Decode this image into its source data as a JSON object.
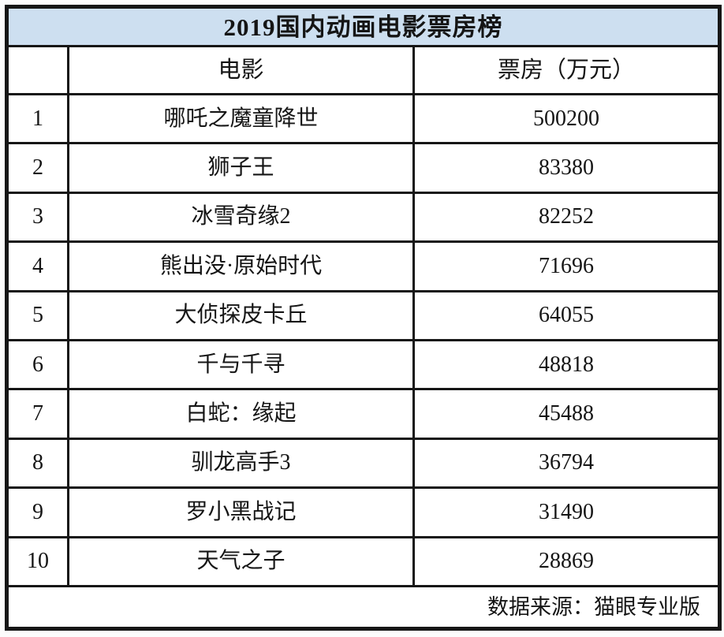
{
  "chart_data": {
    "type": "table",
    "title": "2019国内动画电影票房榜",
    "columns": {
      "rank": "",
      "movie": "电影",
      "boxoffice": "票房（万元）"
    },
    "rows": [
      {
        "rank": "1",
        "movie": "哪吒之魔童降世",
        "boxoffice": "500200"
      },
      {
        "rank": "2",
        "movie": "狮子王",
        "boxoffice": "83380"
      },
      {
        "rank": "3",
        "movie": "冰雪奇缘2",
        "boxoffice": "82252"
      },
      {
        "rank": "4",
        "movie": "熊出没·原始时代",
        "boxoffice": "71696"
      },
      {
        "rank": "5",
        "movie": "大侦探皮卡丘",
        "boxoffice": "64055"
      },
      {
        "rank": "6",
        "movie": "千与千寻",
        "boxoffice": "48818"
      },
      {
        "rank": "7",
        "movie": "白蛇：缘起",
        "boxoffice": "45488"
      },
      {
        "rank": "8",
        "movie": "驯龙高手3",
        "boxoffice": "36794"
      },
      {
        "rank": "9",
        "movie": "罗小黑战记",
        "boxoffice": "31490"
      },
      {
        "rank": "10",
        "movie": "天气之子",
        "boxoffice": "28869"
      }
    ],
    "source": "数据来源：猫眼专业版",
    "layout": {
      "title_position": "top",
      "source_position": "bottom-right",
      "grid": "on"
    }
  },
  "colors": {
    "title_bg": "#cddff0",
    "border": "#161616",
    "text": "#151515",
    "background": "#ffffff"
  }
}
